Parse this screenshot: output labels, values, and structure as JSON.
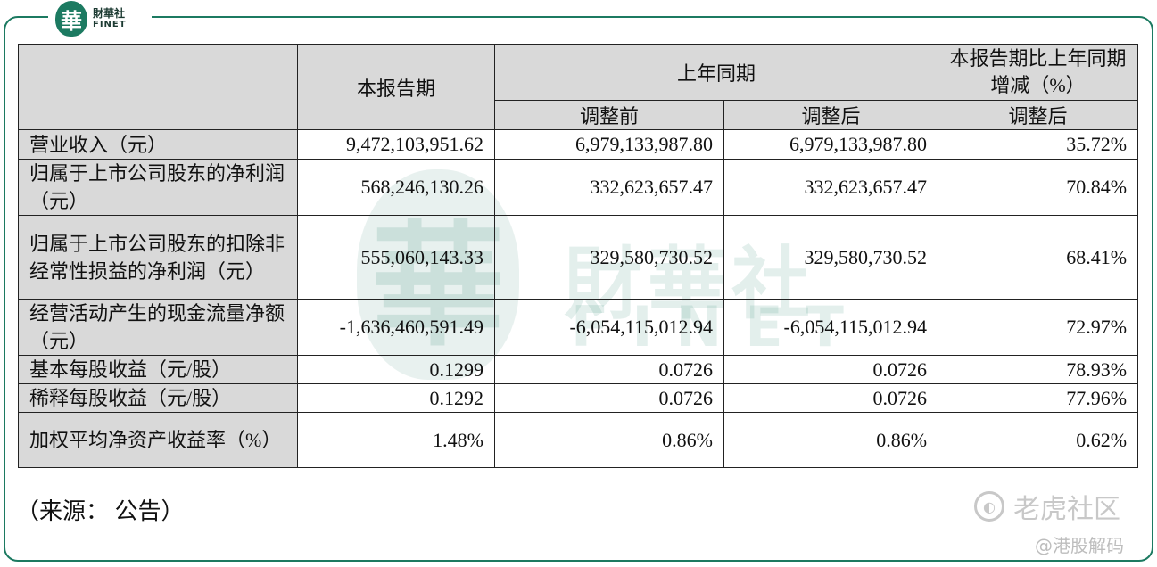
{
  "logo": {
    "seal_char": "華",
    "cn": "財華社",
    "en": "FINET"
  },
  "watermark": {
    "seal_char": "華",
    "cn": "財華社",
    "en": "FINET"
  },
  "table": {
    "header": {
      "current": "本报告期",
      "prior": "上年同期",
      "change": "本报告期比上年同期增减（%）",
      "before": "调整前",
      "after": "调整后",
      "change_after": "调整后"
    },
    "rows": [
      {
        "label": "营业收入（元）",
        "current": "9,472,103,951.62",
        "before": "6,979,133,987.80",
        "after": "6,979,133,987.80",
        "change": "35.72%"
      },
      {
        "label": "归属于上市公司股东的净利润（元）",
        "current": "568,246,130.26",
        "before": "332,623,657.47",
        "after": "332,623,657.47",
        "change": "70.84%"
      },
      {
        "label": "归属于上市公司股东的扣除非经常性损益的净利润（元）",
        "current": "555,060,143.33",
        "before": "329,580,730.52",
        "after": "329,580,730.52",
        "change": "68.41%"
      },
      {
        "label": "经营活动产生的现金流量净额（元）",
        "current": "-1,636,460,591.49",
        "before": "-6,054,115,012.94",
        "after": "-6,054,115,012.94",
        "change": "72.97%"
      },
      {
        "label": "基本每股收益（元/股）",
        "current": "0.1299",
        "before": "0.0726",
        "after": "0.0726",
        "change": "78.93%"
      },
      {
        "label": "稀释每股收益（元/股）",
        "current": "0.1292",
        "before": "0.0726",
        "after": "0.0726",
        "change": "77.96%"
      },
      {
        "label": "加权平均净资产收益率（%）",
        "current": "1.48%",
        "before": "0.86%",
        "after": "0.86%",
        "change": "0.62%"
      }
    ]
  },
  "source": "（来源： 公告）",
  "footer": {
    "brand": "老虎社区",
    "handle": "@港股解码"
  },
  "colors": {
    "accent": "#1c7a61",
    "header_bg": "#d9d9d9"
  }
}
